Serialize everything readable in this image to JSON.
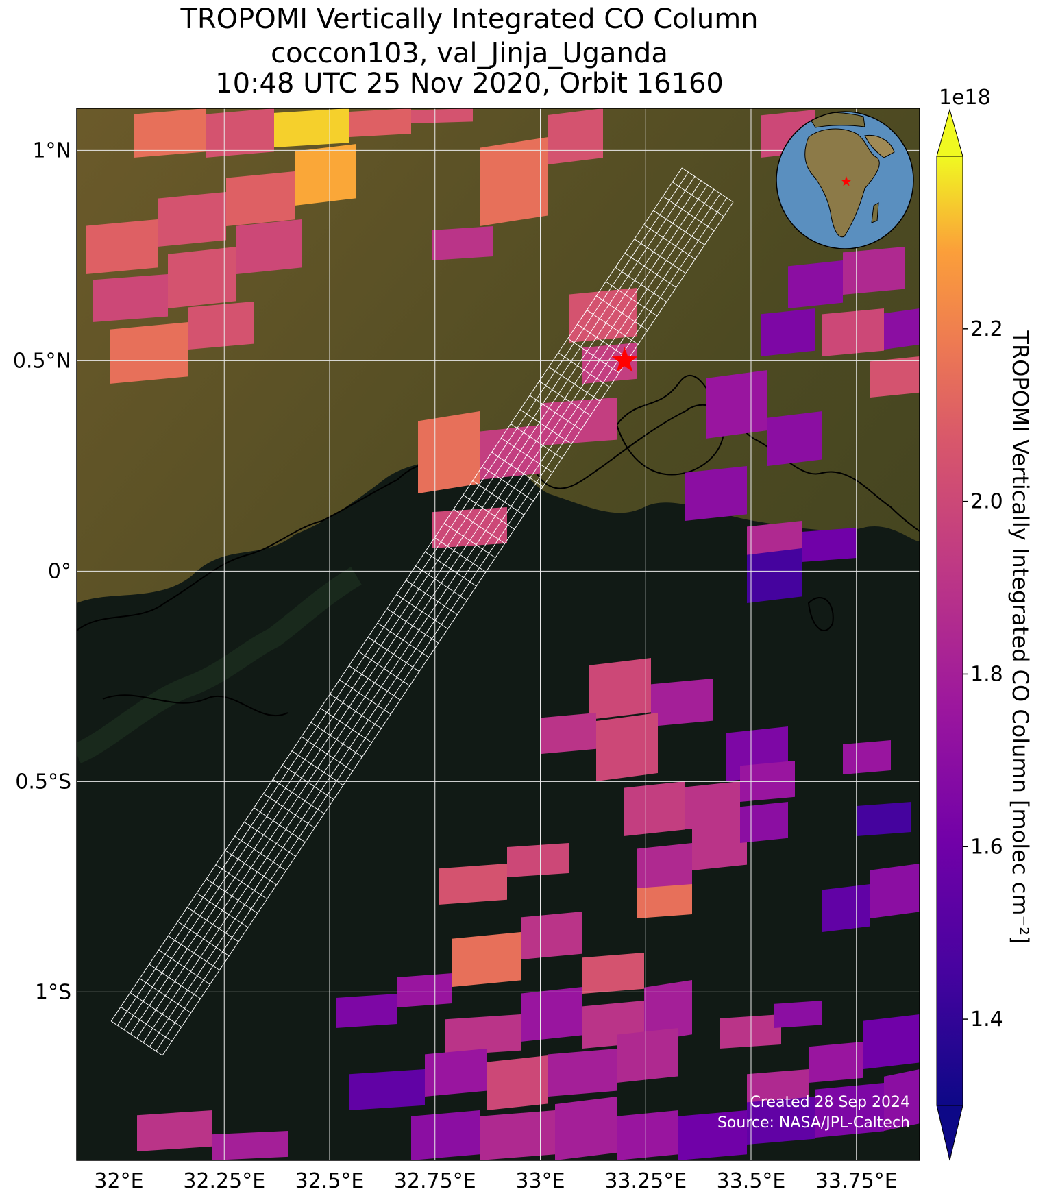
{
  "title": {
    "line1": "TROPOMI Vertically Integrated CO Column",
    "line2": "coccon103, val_Jinja_Uganda",
    "line3": "10:48 UTC 25 Nov 2020, Orbit 16160"
  },
  "map": {
    "lon_range": [
      31.9,
      33.9
    ],
    "lat_range": [
      -1.4,
      1.1
    ],
    "x_ticks": [
      {
        "lon": 32.0,
        "label": "32°E"
      },
      {
        "lon": 32.25,
        "label": "32.25°E"
      },
      {
        "lon": 32.5,
        "label": "32.5°E"
      },
      {
        "lon": 32.75,
        "label": "32.75°E"
      },
      {
        "lon": 33.0,
        "label": "33°E"
      },
      {
        "lon": 33.25,
        "label": "33.25°E"
      },
      {
        "lon": 33.5,
        "label": "33.5°E"
      },
      {
        "lon": 33.75,
        "label": "33.75°E"
      }
    ],
    "y_ticks": [
      {
        "lat": 1.0,
        "label": "1°N"
      },
      {
        "lat": 0.5,
        "label": "0.5°N"
      },
      {
        "lat": 0.0,
        "label": "0°"
      },
      {
        "lat": -0.5,
        "label": "0.5°S"
      },
      {
        "lat": -1.0,
        "label": "1°S"
      }
    ],
    "site_marker": {
      "lon": 33.2,
      "lat": 0.5,
      "color": "#ff0000",
      "icon": "star"
    },
    "background_colors": {
      "land": "#5a5226",
      "lake": "#14211a",
      "gridline": "#e8e8e8"
    }
  },
  "colorbar": {
    "label": "TROPOMI Vertically Integrated CO Column [molec cm⁻²]",
    "scale_label": "1e18",
    "range": [
      1.3,
      2.4
    ],
    "ticks": [
      {
        "value": 1.4,
        "label": "1.4"
      },
      {
        "value": 1.6,
        "label": "1.6"
      },
      {
        "value": 1.8,
        "label": "1.8"
      },
      {
        "value": 2.0,
        "label": "2.0"
      },
      {
        "value": 2.2,
        "label": "2.2"
      }
    ],
    "colormap": "plasma",
    "extend": "both"
  },
  "inset_globe": {
    "marker_color": "#ff0000",
    "icon": "star"
  },
  "credits": {
    "created": "Created 28 Sep 2024",
    "source": "Source: NASA/JPL-Caltech"
  }
}
